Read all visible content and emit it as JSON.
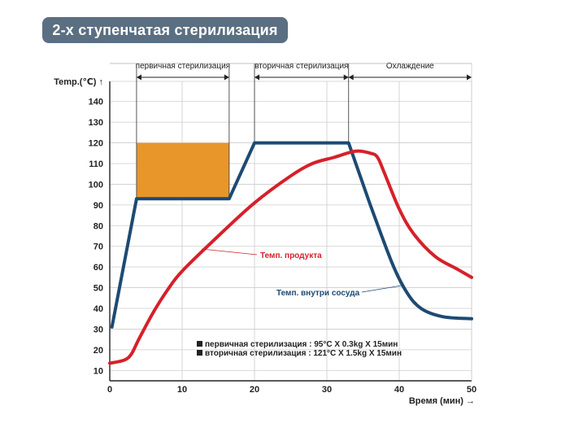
{
  "header": {
    "title": "2-х ступенчатая стерилизация"
  },
  "chart_data": {
    "type": "line",
    "xlabel": "Время (мин)",
    "ylabel": "Temp.(℃)",
    "xlim": [
      0,
      50
    ],
    "ylim": [
      5,
      145
    ],
    "x_ticks": [
      0,
      10,
      20,
      30,
      40,
      50
    ],
    "y_ticks": [
      10,
      20,
      30,
      40,
      50,
      60,
      70,
      80,
      90,
      100,
      110,
      120,
      130,
      140
    ],
    "grid": true,
    "phases": [
      {
        "label": "первичная стерилизация",
        "start": 3.7,
        "end": 16.5
      },
      {
        "label": "вторичная стерилизация",
        "start": 20,
        "end": 33
      },
      {
        "label": "Охлаждение",
        "start": 33,
        "end": 50
      }
    ],
    "highlight_region": {
      "x": [
        3.7,
        16.5
      ],
      "y": [
        93,
        120
      ],
      "color": "#e8962a"
    },
    "series": [
      {
        "name": "Темп. внутри сосуда",
        "color": "#1d4a73",
        "x": [
          0.3,
          3.7,
          16.5,
          20,
          33,
          36,
          39,
          41,
          43,
          46,
          50
        ],
        "y": [
          31,
          93,
          93,
          120,
          120,
          90,
          62,
          48,
          40,
          36,
          35
        ]
      },
      {
        "name": "Темп. продукта",
        "color": "#d6202a",
        "x": [
          0,
          2,
          3,
          4,
          6,
          8,
          10,
          15,
          20,
          25,
          28,
          31,
          34,
          36,
          37,
          38,
          40,
          42,
          45,
          48,
          50
        ],
        "y": [
          13.5,
          15,
          18,
          25,
          38,
          49,
          58,
          75,
          91,
          104,
          110,
          113,
          116,
          115,
          113,
          105,
          88,
          76,
          65,
          59,
          55
        ]
      }
    ],
    "annotations": [
      {
        "text": "Темп. продукта",
        "series": 1,
        "x": 17,
        "y": 71
      },
      {
        "text": "Темп. внутри сосуда",
        "series": 0,
        "x": 40,
        "y": 48
      }
    ],
    "legend_notes": [
      "первичная стерилизация : 95°C X 0.3kg X 15мин",
      "вторичная стерилизация : 121°C X 1.5kg X 15мин"
    ]
  }
}
